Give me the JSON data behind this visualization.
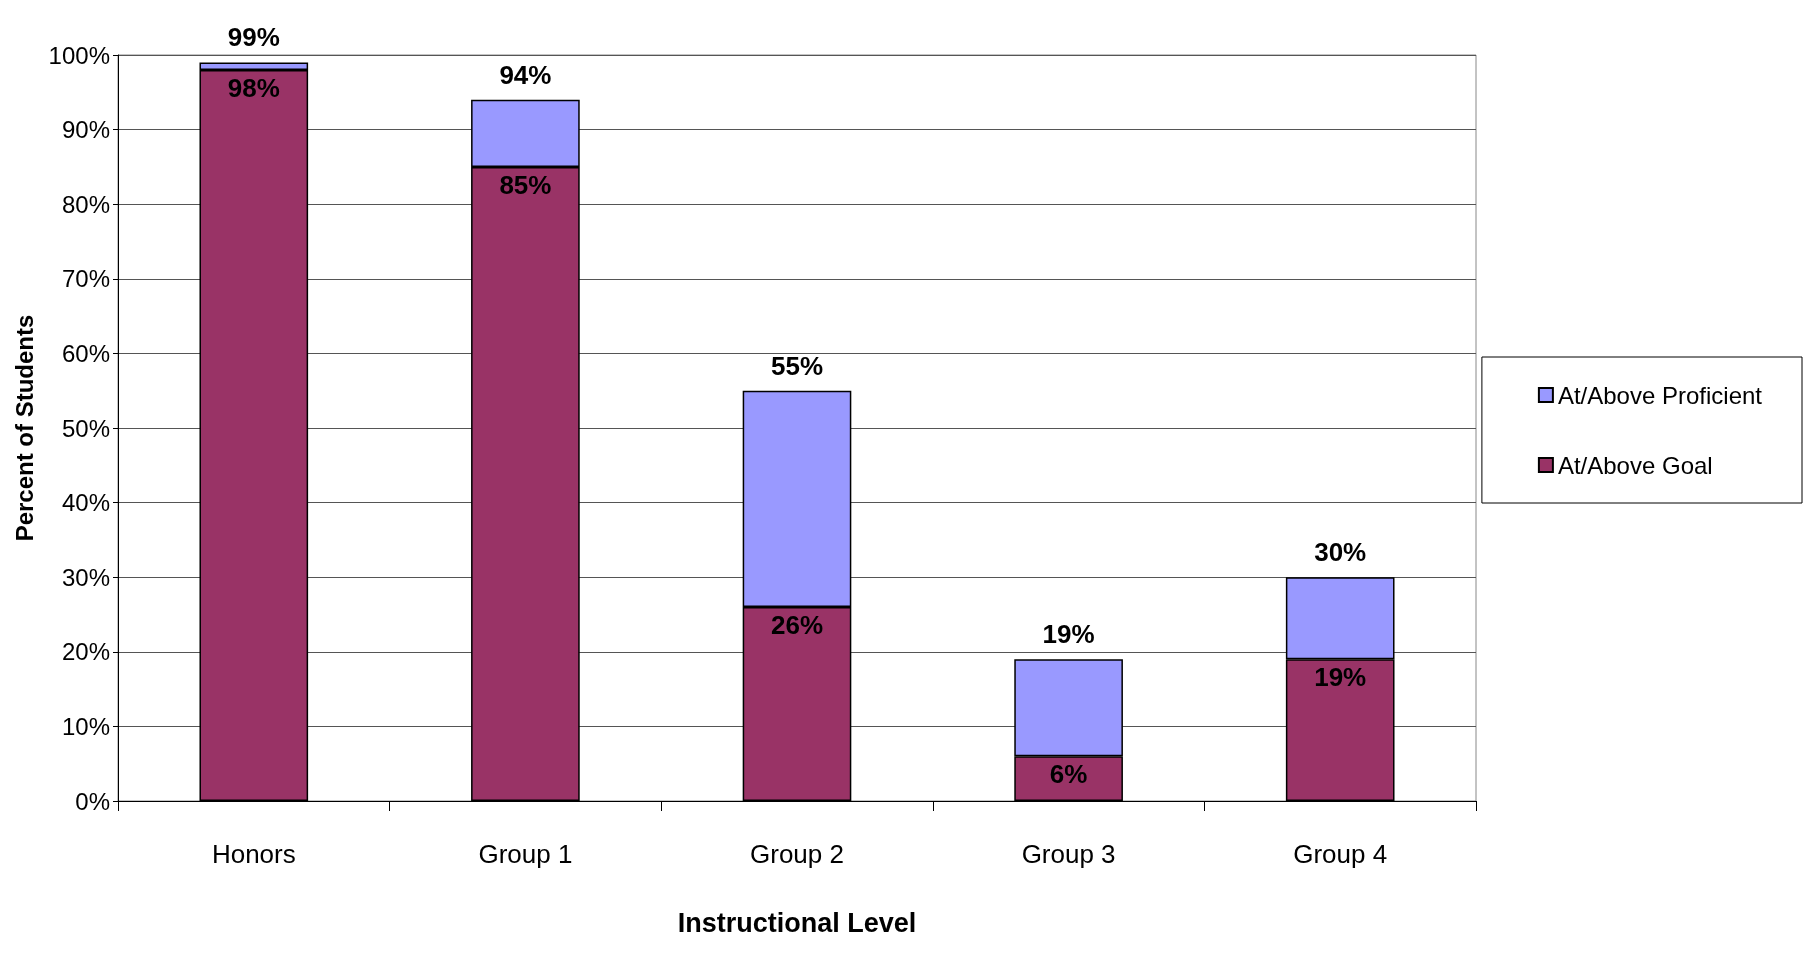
{
  "chart_data": {
    "type": "bar",
    "xlabel": "Instructional Level",
    "ylabel": "Percent of Students",
    "categories": [
      "Honors",
      "Group 1",
      "Group 2",
      "Group 3",
      "Group 4"
    ],
    "stacked": true,
    "series": [
      {
        "name": "At/Above Goal",
        "color": "#993366",
        "values": [
          98,
          85,
          26,
          6,
          19
        ],
        "value_labels": [
          "98%",
          "85%",
          "26%",
          "6%",
          "19%"
        ]
      },
      {
        "name": "At/Above Proficient",
        "color": "#9999ff",
        "values": [
          1,
          9,
          29,
          13,
          11
        ]
      }
    ],
    "totals": [
      "99%",
      "94%",
      "55%",
      "19%",
      "30%"
    ],
    "ylim": [
      0,
      100
    ],
    "yticks": [
      {
        "value": 0,
        "label": "0%"
      },
      {
        "value": 10,
        "label": "10%"
      },
      {
        "value": 20,
        "label": "20%"
      },
      {
        "value": 30,
        "label": "30%"
      },
      {
        "value": 40,
        "label": "40%"
      },
      {
        "value": 50,
        "label": "50%"
      },
      {
        "value": 60,
        "label": "60%"
      },
      {
        "value": 70,
        "label": "70%"
      },
      {
        "value": 80,
        "label": "80%"
      },
      {
        "value": 90,
        "label": "90%"
      },
      {
        "value": 100,
        "label": "100%"
      }
    ],
    "grid": "y",
    "legend": "right"
  }
}
